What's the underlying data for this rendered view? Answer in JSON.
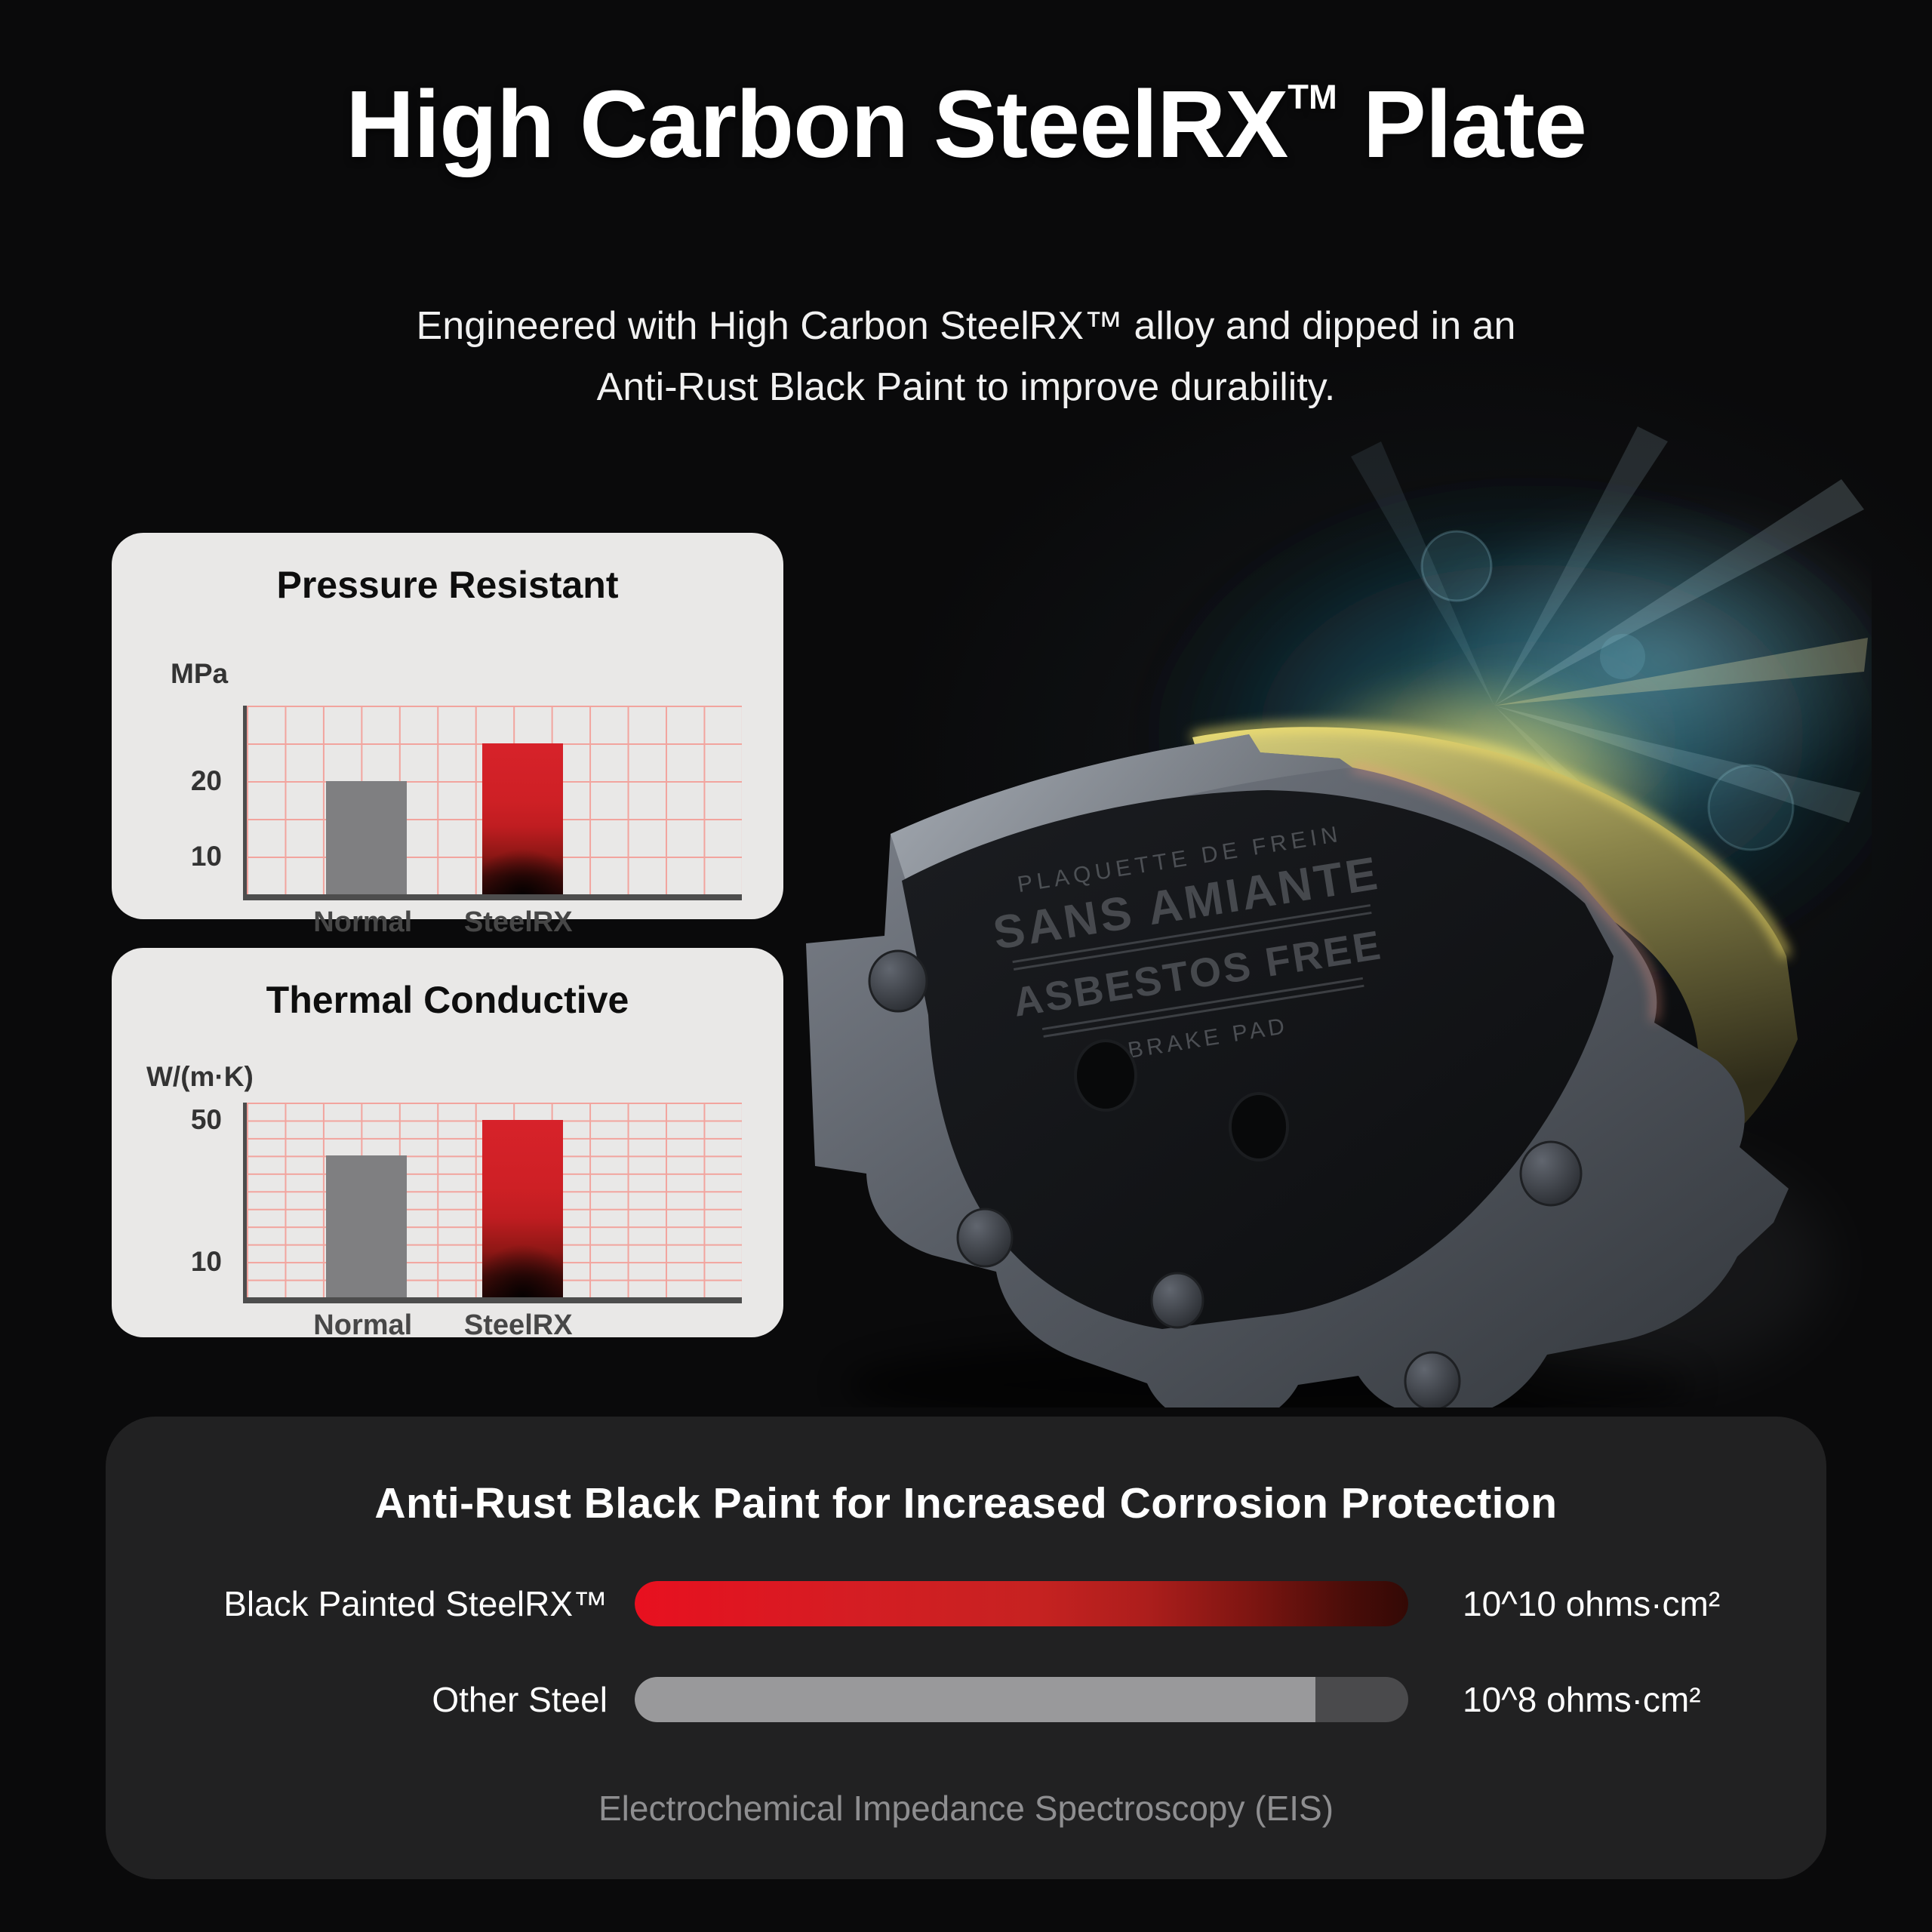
{
  "header": {
    "title_pre": "High Carbon SteelRX",
    "title_tm": "TM",
    "title_post": " Plate",
    "subtitle_line1": "Engineered with High Carbon SteelRX™ alloy and dipped in an",
    "subtitle_line2": "Anti-Rust Black Paint to improve durability."
  },
  "pad": {
    "etch_line1": "PLAQUETTE DE FREIN",
    "etch_line2": "SANS AMIANTE",
    "etch_line3": "ASBESTOS FREE",
    "etch_line4": "BRAKE PAD"
  },
  "colors": {
    "accent_red": "#d01f23",
    "bar_gray": "#7f7f81",
    "grid_pink": "#f2a49e",
    "card_light": "#e9e8e7",
    "panel_dark": "#212122",
    "background": "#0a0a0b"
  },
  "chart_data": [
    {
      "type": "bar",
      "title": "Pressure Resistant",
      "unit": "MPa",
      "ylabel": "MPa",
      "categories": [
        "Normal",
        "SteelRX"
      ],
      "values": [
        20,
        25
      ],
      "yticks": [
        20,
        10
      ],
      "ylim": [
        5,
        30
      ],
      "grid": true,
      "legend": false,
      "bar_colors": [
        "gray",
        "red-gradient"
      ]
    },
    {
      "type": "bar",
      "title": "Thermal Conductive",
      "unit": "W/(m·K)",
      "ylabel": "W/(m·K)",
      "categories": [
        "Normal",
        "SteelRX"
      ],
      "values": [
        40,
        50
      ],
      "yticks": [
        50,
        10
      ],
      "ylim": [
        0,
        55
      ],
      "grid": true,
      "legend": false,
      "bar_colors": [
        "gray",
        "red-gradient"
      ]
    },
    {
      "type": "bar",
      "orientation": "horizontal",
      "title": "Anti-Rust Black Paint for Increased Corrosion Protection",
      "categories": [
        "Black Painted SteelRX™",
        "Other Steel"
      ],
      "values_text": [
        "10^10 ohms·cm²",
        "10^8 ohms·cm²"
      ],
      "values_exponent": [
        10,
        8
      ],
      "bar_fractions": [
        1.0,
        0.88
      ],
      "bar_colors": [
        "red-gradient",
        "gray"
      ],
      "caption": "Electrochemical Impedance Spectroscopy (EIS)"
    }
  ]
}
